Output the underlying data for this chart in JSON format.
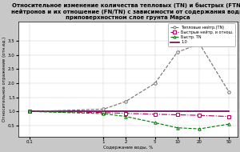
{
  "title_line1": "Относительное изменение количества тепловых (TN) и быстрых (FTN)",
  "title_line2": "нейтронов и их отношение (FN/TN) с зависимости от содержания воды",
  "title_line3": "приповерхностном слое грунта Марса",
  "xlabel": "Содержание воды, %",
  "ylabel": "Относительное отражение (отн.ед.)",
  "x_values": [
    0.1,
    1,
    2,
    5,
    10,
    20,
    50
  ],
  "x_ticks_labels": [
    "0.1",
    "1",
    "2",
    "5",
    "10",
    "20",
    "50"
  ],
  "thermal_neutron": [
    1.0,
    1.08,
    1.35,
    2.0,
    3.1,
    3.4,
    1.7
  ],
  "ratio_fn_tn": [
    1.0,
    0.96,
    0.93,
    0.9,
    0.88,
    0.86,
    0.82
  ],
  "fast_neutron": [
    1.0,
    0.92,
    0.82,
    0.6,
    0.42,
    0.38,
    0.55
  ],
  "level_1": [
    1.0,
    1.0,
    1.0,
    1.0,
    1.0,
    1.0,
    1.0
  ],
  "thermal_color": "#707070",
  "ratio_color": "#aa0055",
  "fast_color": "#007700",
  "level_color": "#660055",
  "bg_color": "#c8c8c8",
  "plot_bg": "#ffffff",
  "legend_labels": [
    "Тепловые нейтр.(TN)",
    "Быстрые нейтр. и отнош.",
    "Быстр. TN",
    "1.0"
  ],
  "ylim": [
    0.1,
    4.2
  ],
  "yticks": [
    0.5,
    1.0,
    1.5,
    2.0,
    2.5,
    3.0,
    3.5
  ],
  "title_fontsize": 5.0,
  "axis_fontsize": 4.0,
  "tick_fontsize": 4.0,
  "legend_fontsize": 3.5
}
